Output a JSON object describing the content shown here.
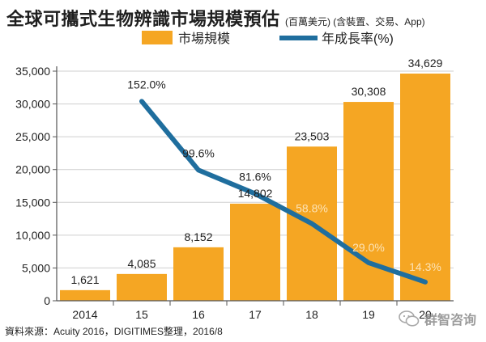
{
  "title": "全球可攜式生物辨識市場規模預估",
  "subtitle": "(百萬美元) (含裝置、交易、App)",
  "source": "資料來源：Acuity 2016，DIGITIMES整理，2016/8",
  "watermark": "群智咨询",
  "colors": {
    "bar": "#F5A623",
    "line": "#1F6E9E",
    "axis": "#555555",
    "grid": "#cfcfcf",
    "text": "#222222",
    "inside_label": "#FCE3B6"
  },
  "chart_data": {
    "type": "bar",
    "categories": [
      "2014",
      "15",
      "16",
      "17",
      "18",
      "19",
      "20"
    ],
    "ylim": [
      0,
      35000
    ],
    "yticks": [
      0,
      5000,
      10000,
      15000,
      20000,
      25000,
      30000,
      35000
    ],
    "ytick_labels": [
      "0",
      "5,000",
      "10,000",
      "15,000",
      "20,000",
      "25,000",
      "30,000",
      "35,000"
    ],
    "grid": true,
    "legend_position": "top",
    "series": [
      {
        "name": "市場規模",
        "kind": "bar",
        "values": [
          1621,
          4085,
          8152,
          14802,
          23503,
          30308,
          34629
        ],
        "labels": [
          "1,621",
          "4,085",
          "8,152",
          "14,802",
          "23,503",
          "30,308",
          "34,629"
        ]
      },
      {
        "name": "年成長率(%)",
        "kind": "line",
        "values": [
          null,
          152.0,
          99.6,
          81.6,
          58.8,
          29.0,
          14.3
        ],
        "labels": [
          "",
          "152.0%",
          "99.6%",
          "81.6%",
          "58.8%",
          "29.0%",
          "14.3%"
        ]
      }
    ]
  }
}
